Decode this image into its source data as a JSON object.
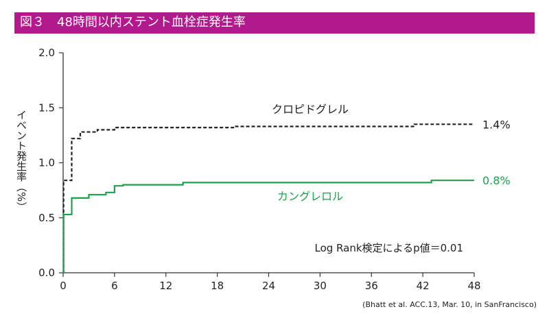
{
  "header": {
    "title": "図３　48時間以内ステント血栓症発生率"
  },
  "source_note": "(Bhatt et al. ACC.13, Mar. 10, in SanFrancisco)",
  "chart_data": {
    "type": "line",
    "title": "図３　48時間以内ステント血栓症発生率",
    "ylabel": "イベント発生率（%）",
    "xlabel": "",
    "xlim": [
      0,
      48
    ],
    "ylim": [
      0,
      2.0
    ],
    "x_ticks": [
      0,
      6,
      12,
      18,
      24,
      30,
      36,
      42,
      48
    ],
    "y_ticks": [
      "0.0",
      "0.5",
      "1.0",
      "1.5",
      "2.0"
    ],
    "grid": false,
    "annotation": "Log Rank検定によるp値＝0.01",
    "series": [
      {
        "name": "クロピドグレル",
        "style": "dashed",
        "color": "#222222",
        "end_label": "1.4%",
        "steps": [
          [
            0,
            0
          ],
          [
            0.05,
            0.84
          ],
          [
            1,
            0.84
          ],
          [
            1,
            1.22
          ],
          [
            1.5,
            1.22
          ],
          [
            2,
            1.28
          ],
          [
            4,
            1.3
          ],
          [
            6,
            1.32
          ],
          [
            20,
            1.33
          ],
          [
            41,
            1.35
          ],
          [
            48,
            1.35
          ]
        ]
      },
      {
        "name": "カングレロル",
        "style": "solid",
        "color": "#1aa34a",
        "end_label": "0.8%",
        "steps": [
          [
            0,
            0
          ],
          [
            0.05,
            0.53
          ],
          [
            1,
            0.53
          ],
          [
            1,
            0.68
          ],
          [
            3,
            0.71
          ],
          [
            5,
            0.73
          ],
          [
            6,
            0.79
          ],
          [
            7,
            0.8
          ],
          [
            14,
            0.82
          ],
          [
            43,
            0.84
          ],
          [
            48,
            0.84
          ]
        ]
      }
    ]
  }
}
